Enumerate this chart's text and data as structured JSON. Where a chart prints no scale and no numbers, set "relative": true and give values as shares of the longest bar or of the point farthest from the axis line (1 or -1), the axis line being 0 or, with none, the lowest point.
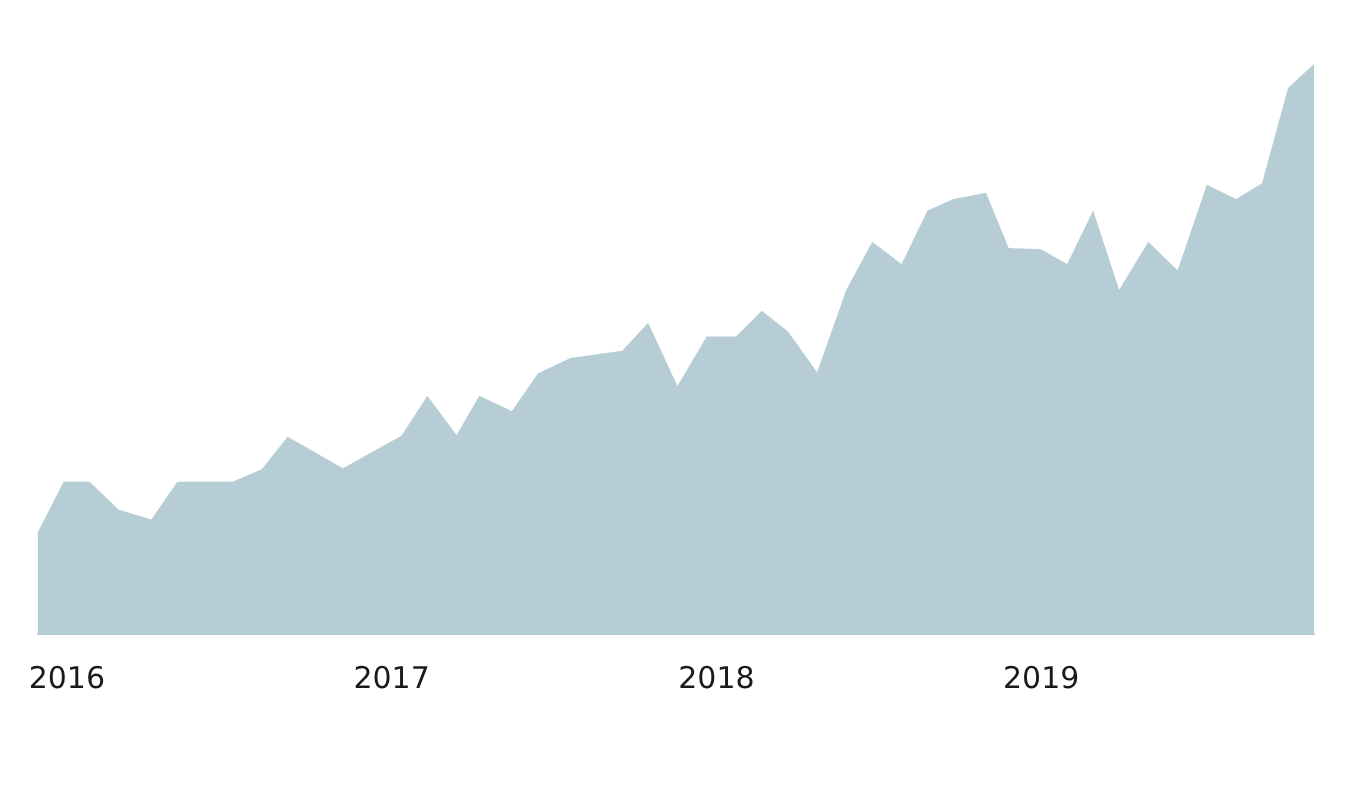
{
  "chart_data": {
    "type": "area",
    "relative": true,
    "color": "#b7cdd5",
    "xlim": [
      2015.91,
      2019.84
    ],
    "xticks": [
      2016,
      2017,
      2018,
      2019
    ],
    "x": [
      2015.91,
      2015.99,
      2016.07,
      2016.16,
      2016.26,
      2016.34,
      2016.51,
      2016.6,
      2016.68,
      2016.85,
      2017.03,
      2017.11,
      2017.2,
      2017.27,
      2017.37,
      2017.45,
      2017.55,
      2017.71,
      2017.79,
      2017.88,
      2017.97,
      2018.06,
      2018.14,
      2018.22,
      2018.31,
      2018.4,
      2018.48,
      2018.57,
      2018.65,
      2018.73,
      2018.83,
      2018.9,
      2019.0,
      2019.08,
      2019.16,
      2019.24,
      2019.33,
      2019.42,
      2019.51,
      2019.6,
      2019.68,
      2019.76,
      2019.84
    ],
    "values": [
      0.178,
      0.267,
      0.267,
      0.218,
      0.201,
      0.267,
      0.267,
      0.289,
      0.346,
      0.291,
      0.348,
      0.418,
      0.349,
      0.418,
      0.391,
      0.457,
      0.484,
      0.497,
      0.546,
      0.435,
      0.522,
      0.522,
      0.567,
      0.531,
      0.459,
      0.604,
      0.688,
      0.649,
      0.743,
      0.763,
      0.774,
      0.677,
      0.675,
      0.649,
      0.743,
      0.604,
      0.688,
      0.638,
      0.788,
      0.763,
      0.791,
      0.958,
      1
    ]
  }
}
